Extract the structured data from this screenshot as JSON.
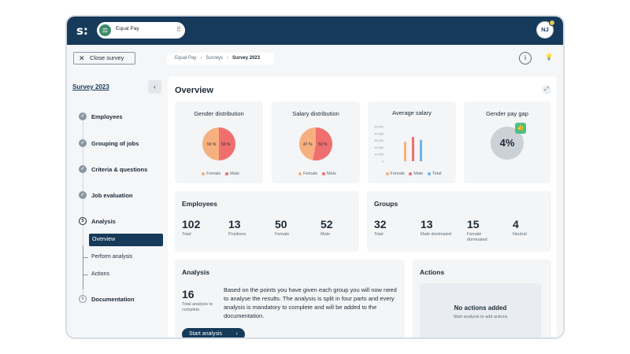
{
  "topbar": {
    "logo": "s:",
    "app_name": "Equal Pay",
    "avatar_initials": "NJ"
  },
  "toolbar": {
    "close_label": "Close survey",
    "breadcrumbs": [
      "Equal Pay",
      "Surveys",
      "Survey 2023"
    ]
  },
  "sidebar": {
    "survey_link": "Survey 2023",
    "steps": [
      {
        "label": "Employees",
        "state": "done"
      },
      {
        "label": "Grouping of jobs",
        "state": "done"
      },
      {
        "label": "Criteria & questions",
        "state": "done"
      },
      {
        "label": "Job evaluation",
        "state": "done"
      },
      {
        "label": "Analysis",
        "number": "5",
        "state": "current"
      },
      {
        "label": "Documentation",
        "number": "6",
        "state": "todo"
      }
    ],
    "substeps": [
      "Overview",
      "Perform analysis",
      "Actions"
    ]
  },
  "overview": {
    "title": "Overview",
    "gender_distribution": {
      "title": "Gender distribution",
      "female_pct": 50,
      "male_pct": 50,
      "female_label": "50 %",
      "male_label": "50 %"
    },
    "salary_distribution": {
      "title": "Salary distribution",
      "female_pct": 47,
      "male_pct": 53,
      "female_label": "47 %",
      "male_label": "53 %"
    },
    "average_salary": {
      "title": "Average salary",
      "y_ticks": [
        "50 000",
        "40 000",
        "30 000",
        "20 000",
        "10 000",
        "0"
      ],
      "values": {
        "female": 28000,
        "male": 35000,
        "total": 31000
      },
      "ymax": 50000
    },
    "gender_pay_gap": {
      "title": "Gender pay gap",
      "value": "4%"
    },
    "legend": {
      "female": "Female",
      "male": "Male",
      "total": "Total"
    },
    "colors": {
      "female": "#f6b07f",
      "male": "#ef6f6f",
      "total": "#6fb5e8",
      "gap_badge": "#4fbf85"
    }
  },
  "employees": {
    "title": "Employees",
    "stats": [
      {
        "value": "102",
        "label": "Total"
      },
      {
        "value": "13",
        "label": "Positions"
      },
      {
        "value": "50",
        "label": "Female"
      },
      {
        "value": "52",
        "label": "Male"
      }
    ]
  },
  "groups": {
    "title": "Groups",
    "stats": [
      {
        "value": "32",
        "label": "Total"
      },
      {
        "value": "13",
        "label": "Male dominated"
      },
      {
        "value": "15",
        "label": "Female dominated"
      },
      {
        "value": "4",
        "label": "Neutral"
      }
    ]
  },
  "analysis": {
    "title": "Analysis",
    "count": "16",
    "count_label": "Total analysis to complete",
    "description": "Based on the points you have given each group you will now need to analyse the results. The analysis is split in four parts and every analysis is mandatory to complete and will be added to the documentation.",
    "start_label": "Start analysis"
  },
  "actions": {
    "title": "Actions",
    "empty_title": "No actions added",
    "empty_subtitle": "Start analysis to add actions"
  }
}
